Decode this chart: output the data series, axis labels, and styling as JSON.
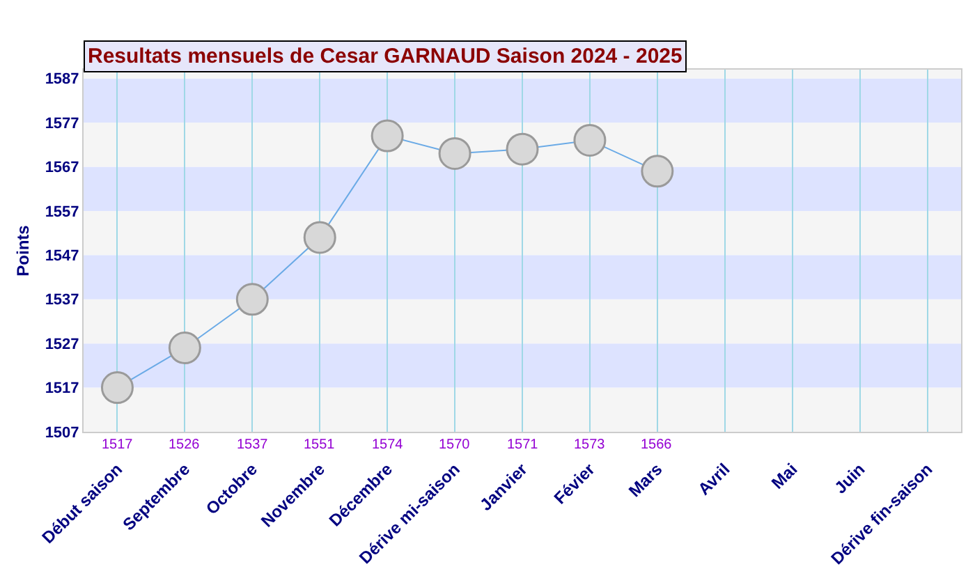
{
  "chart_data": {
    "type": "line",
    "title": "Resultats mensuels de Cesar GARNAUD Saison 2024 - 2025",
    "ylabel": "Points",
    "categories": [
      "Début saison",
      "Septembre",
      "Octobre",
      "Novembre",
      "Décembre",
      "Dérive mi-saison",
      "Janvier",
      "Févier",
      "Mars",
      "Avril",
      "Mai",
      "Juin",
      "Dérive fin-saison"
    ],
    "series": [
      {
        "color": "#6aaae6",
        "values": [
          1517,
          1526,
          1537,
          1551,
          1574,
          1570,
          1571,
          1573,
          1566,
          null,
          null,
          null,
          null
        ]
      }
    ],
    "data_labels": true,
    "marker": "circle",
    "line_style": "solid",
    "grid": "x",
    "ylim": [
      1507,
      1589
    ],
    "yticks": [
      1507,
      1517,
      1527,
      1537,
      1547,
      1557,
      1567,
      1577,
      1587
    ],
    "bands": [
      {
        "axis": "y",
        "from": 1507,
        "to": 1517,
        "color": "#f5f5f5"
      },
      {
        "axis": "y",
        "from": 1517,
        "to": 1527,
        "color": "#dde3ff"
      },
      {
        "axis": "y",
        "from": 1527,
        "to": 1537,
        "color": "#f5f5f5"
      },
      {
        "axis": "y",
        "from": 1537,
        "to": 1547,
        "color": "#dde3ff"
      },
      {
        "axis": "y",
        "from": 1547,
        "to": 1557,
        "color": "#f5f5f5"
      },
      {
        "axis": "y",
        "from": 1557,
        "to": 1567,
        "color": "#dde3ff"
      },
      {
        "axis": "y",
        "from": 1567,
        "to": 1577,
        "color": "#f5f5f5"
      },
      {
        "axis": "y",
        "from": 1577,
        "to": 1587,
        "color": "#dde3ff"
      },
      {
        "axis": "y",
        "from": 1587,
        "to": 1589,
        "color": "#f5f5f5"
      }
    ]
  }
}
